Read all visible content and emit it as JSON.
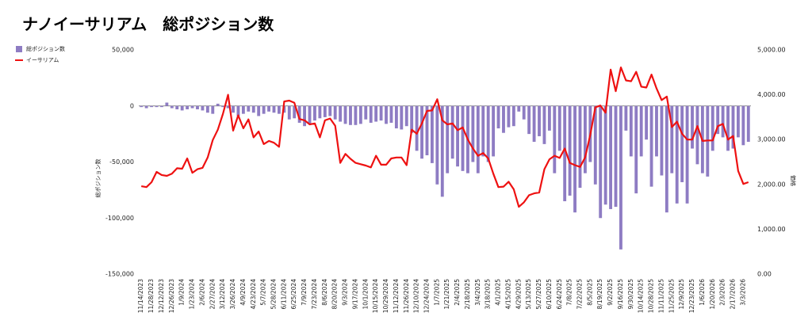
{
  "chart_data": {
    "type": "bar-line",
    "title": "ナノイーサリアム　総ポジション数",
    "y_label": "総ポジション数",
    "y2_label": "価格",
    "categories": [
      "11/14/2023",
      null,
      "11/28/2023",
      null,
      "12/12/2023",
      null,
      "12/26/2023",
      null,
      "1/9/2024",
      null,
      "1/23/2024",
      null,
      "2/6/2024",
      null,
      "2/27/2024",
      null,
      "3/12/2024",
      null,
      "3/26/2024",
      null,
      "4/9/2024",
      null,
      "4/23/2024",
      null,
      "5/7/2024",
      null,
      "5/28/2024",
      null,
      "6/11/2024",
      null,
      "6/25/2024",
      null,
      "7/9/2024",
      null,
      "7/23/2024",
      null,
      "8/6/2024",
      null,
      "8/20/2024",
      null,
      "9/3/2024",
      null,
      "9/17/2024",
      null,
      "10/1/2024",
      null,
      "10/15/2024",
      null,
      "10/29/2024",
      null,
      "11/12/2024",
      null,
      "11/26/2024",
      null,
      "12/10/2024",
      null,
      "12/24/2024",
      null,
      "1/7/2025",
      null,
      "1/21/2025",
      null,
      "2/4/2025",
      null,
      "2/18/2025",
      null,
      "3/4/2025",
      null,
      "3/18/2025",
      null,
      "4/1/2025",
      null,
      "4/15/2025",
      null,
      "4/29/2025",
      null,
      "5/13/2025",
      null,
      "5/27/2025",
      null,
      "6/10/2025",
      null,
      "6/24/2025",
      null,
      "7/8/2025",
      null,
      "7/22/2025",
      null,
      "8/5/2025",
      null,
      "8/19/2025",
      null,
      "9/2/2025",
      null,
      "9/16/2025",
      null,
      "9/30/2025",
      null,
      "10/14/2025",
      null,
      "10/28/2025",
      null,
      "11/11/2025",
      null,
      "11/25/2025",
      null,
      "12/9/2025",
      null,
      "12/23/2025",
      null,
      "1/6/2026",
      null,
      "1/20/2026",
      null,
      "2/3/2026",
      null,
      "2/17/2026",
      null,
      "3/3/2026",
      null
    ],
    "series": [
      {
        "name": "総ポジション数",
        "color": "#8e7cc3",
        "type": "bar",
        "values": [
          -1000,
          -2000,
          -1000,
          -1000,
          -1000,
          3000,
          -2000,
          -3000,
          -4000,
          -3000,
          -2000,
          -3000,
          -4000,
          -6000,
          -7000,
          2000,
          -1000,
          -2000,
          -6000,
          -9000,
          -7000,
          -5000,
          -6000,
          -9000,
          -7000,
          -5000,
          -6000,
          -7000,
          -6000,
          -12000,
          -11000,
          -15000,
          -18000,
          -16000,
          -13000,
          -11000,
          -10000,
          -9000,
          -12000,
          -14000,
          -16000,
          -17000,
          -17000,
          -16000,
          -12000,
          -15000,
          -14000,
          -13000,
          -16000,
          -15000,
          -20000,
          -21000,
          -18000,
          -24000,
          -40000,
          -47000,
          -44000,
          -51000,
          -70000,
          -81000,
          -60000,
          -47000,
          -54000,
          -58000,
          -60000,
          -50000,
          -60000,
          -45000,
          -50000,
          -45000,
          -20000,
          -24000,
          -19000,
          -18000,
          -5000,
          -12000,
          -25000,
          -32000,
          -27000,
          -34000,
          -22000,
          -60000,
          -40000,
          -85000,
          -80000,
          -95000,
          -73000,
          -60000,
          -50000,
          -70000,
          -100000,
          -88000,
          -92000,
          -90000,
          -128000,
          -22000,
          -45000,
          -78000,
          -45000,
          -30000,
          -72000,
          -45000,
          -62000,
          -95000,
          -60000,
          -87000,
          -68000,
          -87000,
          -38000,
          -52000,
          -60000,
          -63000,
          -40000,
          -25000,
          -28000,
          -40000,
          -38000,
          -28000,
          -35000,
          -32000
        ]
      },
      {
        "name": "イーサリアム",
        "color": "#ee1111",
        "type": "line",
        "axis": "y2",
        "values": [
          1960,
          1940,
          2050,
          2280,
          2210,
          2190,
          2240,
          2360,
          2350,
          2580,
          2260,
          2340,
          2370,
          2600,
          2990,
          3220,
          3570,
          4000,
          3200,
          3540,
          3250,
          3450,
          3050,
          3180,
          2900,
          2970,
          2930,
          2840,
          3850,
          3870,
          3820,
          3460,
          3430,
          3340,
          3360,
          3050,
          3430,
          3470,
          3310,
          2480,
          2680,
          2570,
          2480,
          2450,
          2420,
          2380,
          2640,
          2440,
          2440,
          2580,
          2600,
          2600,
          2430,
          3220,
          3130,
          3360,
          3640,
          3650,
          3900,
          3430,
          3340,
          3360,
          3210,
          3270,
          3000,
          2800,
          2640,
          2700,
          2580,
          2240,
          1940,
          1950,
          2060,
          1890,
          1500,
          1600,
          1760,
          1800,
          1820,
          2340,
          2560,
          2640,
          2590,
          2800,
          2480,
          2430,
          2390,
          2600,
          3110,
          3720,
          3760,
          3600,
          4560,
          4080,
          4610,
          4320,
          4300,
          4510,
          4180,
          4160,
          4450,
          4140,
          3880,
          3960,
          3280,
          3400,
          3130,
          3000,
          3000,
          3300,
          2970,
          2980,
          2980,
          3300,
          3350,
          3000,
          3080,
          2300,
          2010,
          2050
        ]
      }
    ],
    "ylim": [
      -150000,
      50000
    ],
    "yticks": [
      {
        "value": -150000,
        "label": "-150,000"
      },
      {
        "value": -100000,
        "label": "-100,000"
      },
      {
        "value": -50000,
        "label": "-50,000"
      },
      0,
      {
        "value": 50000,
        "label": "50,000"
      }
    ],
    "y2lim": [
      0,
      5000
    ],
    "y2ticks": [
      {
        "value": 0,
        "label": "0.00"
      },
      {
        "value": 1000,
        "label": "1,000.00"
      },
      {
        "value": 2000,
        "label": "2,000.00"
      },
      {
        "value": 3000,
        "label": "3,000.00"
      },
      {
        "value": 4000,
        "label": "4,000.00"
      },
      {
        "value": 5000,
        "label": "5,000.00"
      }
    ],
    "legend": "top-left"
  }
}
